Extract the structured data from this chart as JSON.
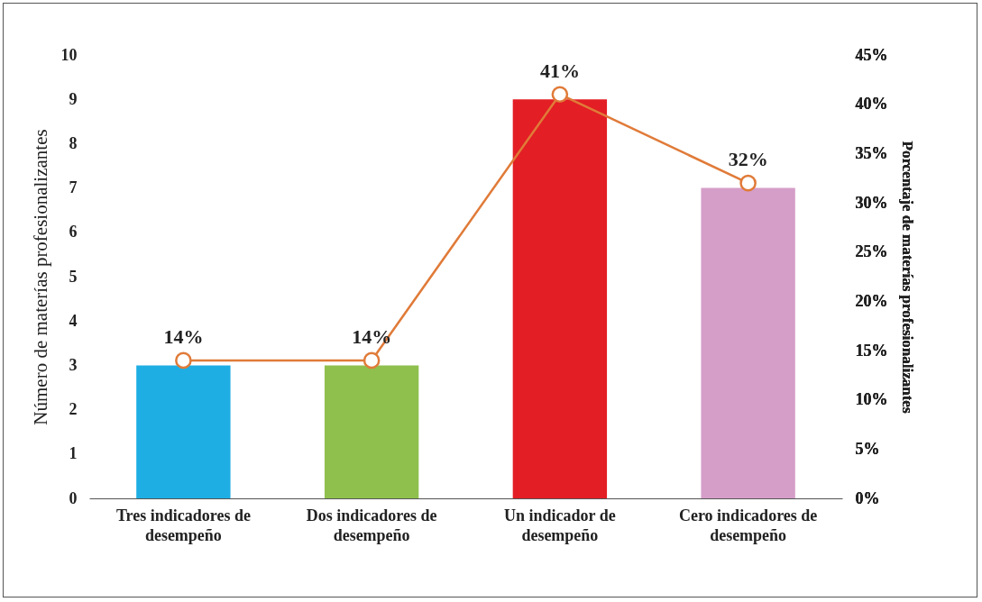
{
  "chart_data": {
    "type": "bar",
    "categories": [
      "Tres indicadores de desempeño",
      "Dos indicadores de desempeño",
      "Un indicador de desempeño",
      "Cero indicadores de desempeño"
    ],
    "ylabel": "Número de materías profesionalizantes",
    "y2label": "Porcentaje de materías profesionalizantes",
    "ylim": [
      0,
      10
    ],
    "yticks": [
      0,
      1,
      2,
      3,
      4,
      5,
      6,
      7,
      8,
      9,
      10
    ],
    "y2lim": [
      0,
      45
    ],
    "y2ticks": [
      {
        "value": 0,
        "label": "0%"
      },
      {
        "value": 5,
        "label": "5%"
      },
      {
        "value": 10,
        "label": "10%"
      },
      {
        "value": 15,
        "label": "15%"
      },
      {
        "value": 20,
        "label": "20%"
      },
      {
        "value": 25,
        "label": "25%"
      },
      {
        "value": 30,
        "label": "30%"
      },
      {
        "value": 35,
        "label": "35%"
      },
      {
        "value": 40,
        "label": "40%"
      },
      {
        "value": 45,
        "label": "45%"
      }
    ],
    "legend": false,
    "grid": false,
    "marker": "circle",
    "series": [
      {
        "colors": [
          "#1eaee4",
          "#8fc04e",
          "#e31e24",
          "#d59ec8"
        ],
        "values": [
          3,
          3,
          9,
          7
        ]
      },
      {
        "type": "line",
        "axis": "y2",
        "color": "#e07b39",
        "values": [
          14,
          14,
          41,
          32
        ],
        "value_labels": [
          "14%",
          "14%",
          "41%",
          "32%"
        ]
      }
    ]
  }
}
